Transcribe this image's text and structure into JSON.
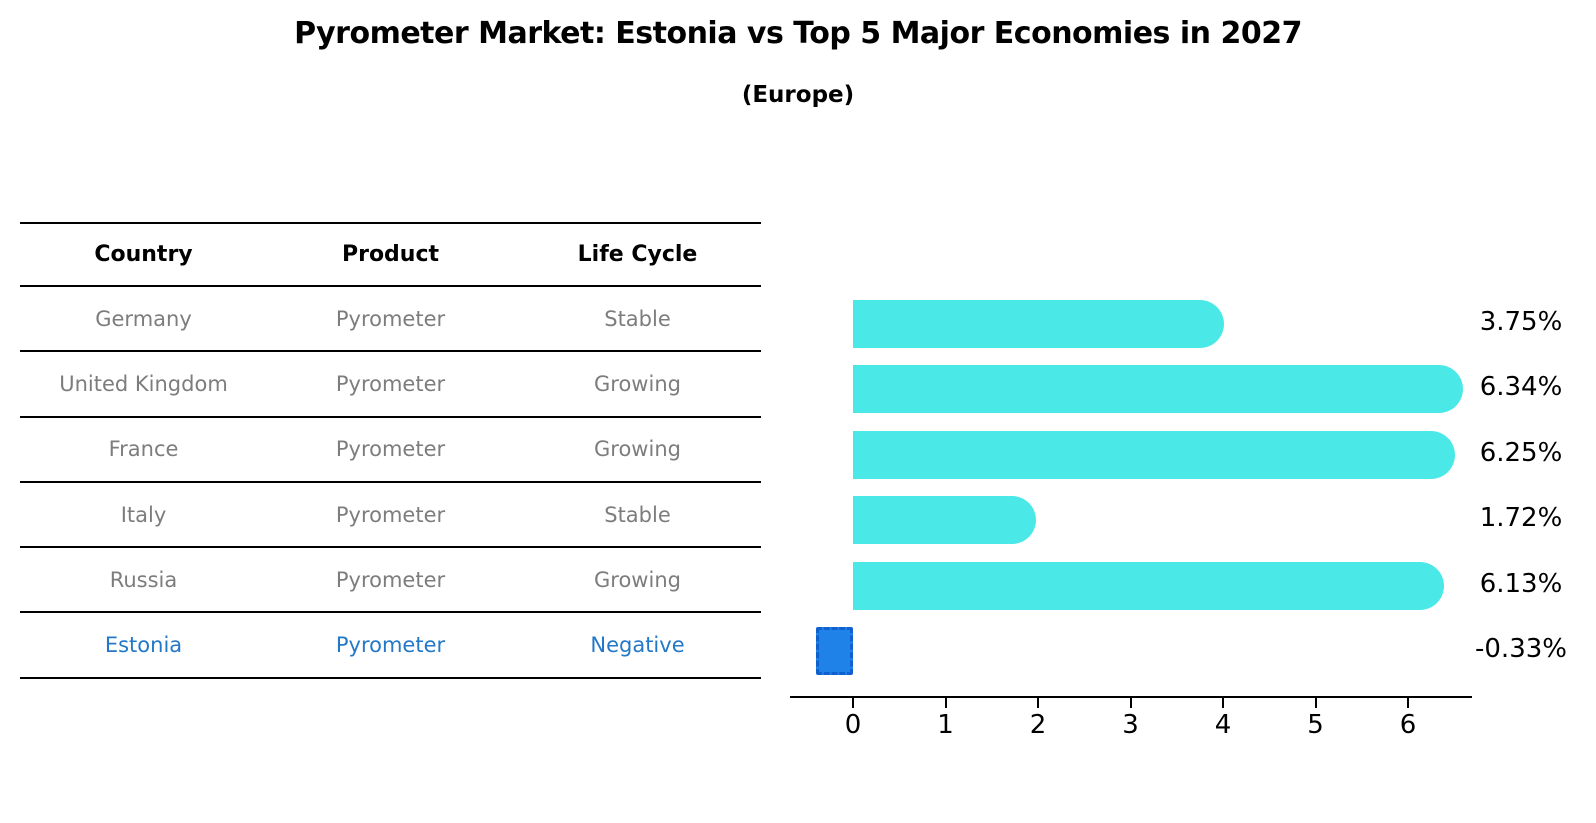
{
  "title": "Pyrometer Market: Estonia vs Top 5 Major Economies in 2027",
  "subtitle": "(Europe)",
  "table": {
    "headers": [
      "Country",
      "Product",
      "Life Cycle"
    ],
    "rows": [
      {
        "country": "Germany",
        "product": "Pyrometer",
        "life_cycle": "Stable",
        "highlight": false
      },
      {
        "country": "United Kingdom",
        "product": "Pyrometer",
        "life_cycle": "Growing",
        "highlight": false
      },
      {
        "country": "France",
        "product": "Pyrometer",
        "life_cycle": "Growing",
        "highlight": false
      },
      {
        "country": "Italy",
        "product": "Pyrometer",
        "life_cycle": "Stable",
        "highlight": false
      },
      {
        "country": "Russia",
        "product": "Pyrometer",
        "life_cycle": "Growing",
        "highlight": false
      },
      {
        "country": "Estonia",
        "product": "Pyrometer",
        "life_cycle": "Negative",
        "highlight": true
      }
    ]
  },
  "chart_data": {
    "type": "bar",
    "orientation": "horizontal",
    "title": "Pyrometer Market: Estonia vs Top 5 Major Economies in 2027 (Europe)",
    "categories": [
      "Germany",
      "United Kingdom",
      "France",
      "Italy",
      "Russia",
      "Estonia"
    ],
    "values": [
      3.75,
      6.34,
      6.25,
      1.72,
      6.13,
      -0.33
    ],
    "value_labels": [
      "3.75%",
      "6.34%",
      "6.25%",
      "1.72%",
      "6.13%",
      "-0.33%"
    ],
    "x_ticks": [
      "0",
      "1",
      "2",
      "3",
      "4",
      "5",
      "6"
    ],
    "xlim": [
      -0.68,
      6.67
    ],
    "xlabel": "",
    "ylabel": "",
    "grid": false,
    "legend": false,
    "highlight_index": 5
  },
  "colors": {
    "bar_fill": "#4AE8E6",
    "highlight_bar_fill": "#1E82E8",
    "highlight_bar_border": "#1060D0",
    "highlight_text": "#2478C8",
    "table_text": "#7d7d7d",
    "heading_text": "#000000",
    "axis": "#000000"
  }
}
